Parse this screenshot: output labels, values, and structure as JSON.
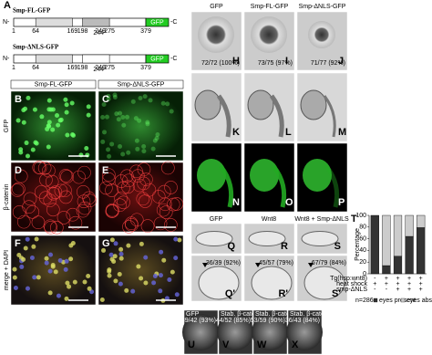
{
  "panel_a": {
    "label": "A",
    "constructs": [
      {
        "name": "Smp-FL-GFP",
        "n": "N-",
        "c": "-C",
        "gfp": "GFP",
        "positions": [
          "1",
          "64",
          "169",
          "198",
          "244",
          "249",
          "275",
          "379"
        ]
      },
      {
        "name": "Smp-ΔNLS-GFP",
        "n": "N-",
        "c": "-C",
        "gfp": "GFP",
        "positions": [
          "1",
          "64",
          "169",
          "198",
          "244",
          "249",
          "275",
          "379"
        ]
      }
    ]
  },
  "panels_bg": {
    "columns": [
      "Smp-FL-GFP",
      "Smp-ΔNLS-GFP"
    ],
    "rows": [
      "GFP",
      "β-catenin",
      "merge + DAPI"
    ],
    "letters": [
      "B",
      "C",
      "D",
      "E",
      "F",
      "G"
    ]
  },
  "panels_hp": {
    "columns": [
      "GFP",
      "Smp-FL-GFP",
      "Smp-ΔNLS-GFP"
    ],
    "letters": [
      "H",
      "I",
      "J",
      "K",
      "L",
      "M",
      "N",
      "O",
      "P"
    ],
    "counts": [
      "72/72 (100%)",
      "73/75 (97%)",
      "71/77 (92%)"
    ]
  },
  "panels_qs": {
    "columns": [
      "GFP",
      "Wnt8",
      "Wnt8 + Smp-ΔNLS"
    ],
    "letters": [
      "Q",
      "R",
      "S",
      "Q'",
      "R'",
      "S'"
    ],
    "counts": [
      "36/39 (92%)",
      "45/57 (79%)",
      "67/79 (84%)"
    ]
  },
  "panels_ux": {
    "columns": [
      "GFP",
      "Stab. β-catenin",
      "Stab. β-catenin+Smp",
      "Stab. β-catenin+ΔNLS"
    ],
    "letters": [
      "U",
      "V",
      "W",
      "X"
    ],
    "counts": [
      "39/42 (93%)",
      "44/52 (85%)",
      "53/59 (90%)",
      "36/43 (84%)"
    ]
  },
  "chart_data": {
    "type": "stacked-bar",
    "label": "T",
    "y_label": "Percentage",
    "ylim": [
      0,
      100
    ],
    "yticks": [
      0,
      20,
      40,
      60,
      80,
      100
    ],
    "categories": [
      null,
      null,
      null,
      null,
      null
    ],
    "conditions": [
      {
        "name": "Tg(hsp:wnt8)",
        "marks": [
          "-",
          "+",
          "+",
          "+",
          "+"
        ]
      },
      {
        "name": "heat shock",
        "marks": [
          "+",
          "+",
          "+",
          "+",
          "+"
        ]
      },
      {
        "name": "smp-ΔNLS",
        "marks": [
          "-",
          "-",
          "+",
          "+",
          "+"
        ]
      }
    ],
    "n_label": "n=286",
    "series": [
      {
        "name": "eyes present",
        "color": "#333333",
        "values": [
          100,
          14,
          30,
          64,
          79
        ]
      },
      {
        "name": "eyes absent",
        "color": "#cccccc",
        "values": [
          0,
          86,
          70,
          36,
          21
        ]
      }
    ]
  }
}
